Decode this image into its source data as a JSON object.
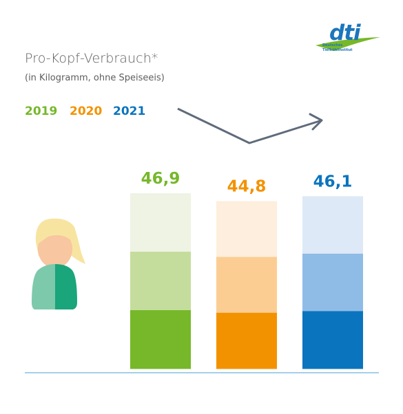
{
  "title": "Pro-Kopf-Verbrauch*",
  "subtitle": "(in Kilogramm, ohne Speiseeis)",
  "logo": {
    "text": "dti",
    "line1": "Deutsches",
    "line2": "Tiefkühlinstitut"
  },
  "colors": {
    "2019": [
      "#eef3e3",
      "#c5dd9c",
      "#76b82a"
    ],
    "2020": [
      "#fdeedd",
      "#fccd92",
      "#f39200"
    ],
    "2021": [
      "#dde9f6",
      "#8fbce6",
      "#0a74be"
    ],
    "arrow": "#5f6b7a",
    "baseline": "#4a9cd6",
    "text": "#5d5d5d"
  },
  "chart_data": {
    "type": "bar",
    "categories": [
      "2019",
      "2020",
      "2021"
    ],
    "values": [
      46.9,
      44.8,
      46.1
    ],
    "value_labels": [
      "46,9",
      "44,8",
      "46,1"
    ],
    "title": "Pro-Kopf-Verbrauch*",
    "subtitle": "(in Kilogramm, ohne Speiseeis)",
    "legend": [
      "2019",
      "2020",
      "2021"
    ],
    "legend_position": "top-left",
    "trend": "down-then-up",
    "grid": false,
    "ylim": [
      0,
      46.9
    ]
  }
}
